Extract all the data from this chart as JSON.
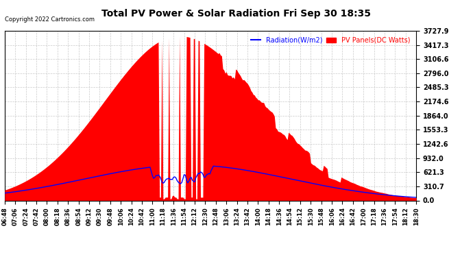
{
  "title": "Total PV Power & Solar Radiation Fri Sep 30 18:35",
  "copyright": "Copyright 2022 Cartronics.com",
  "legend_radiation": "Radiation(W/m2)",
  "legend_pv": "PV Panels(DC Watts)",
  "ylabel_right_ticks": [
    0.0,
    310.7,
    621.3,
    932.0,
    1242.6,
    1553.3,
    1864.0,
    2174.6,
    2485.3,
    2796.0,
    3106.6,
    3417.3,
    3727.9
  ],
  "ymax": 3727.9,
  "ymin": 0.0,
  "background_color": "#ffffff",
  "plot_background": "#ffffff",
  "grid_color": "#bbbbbb",
  "pv_fill_color": "#ff0000",
  "radiation_line_color": "#0000ff",
  "title_color": "#000000",
  "copyright_color": "#000000",
  "legend_radiation_color": "#0000ff",
  "legend_pv_color": "#ff0000"
}
